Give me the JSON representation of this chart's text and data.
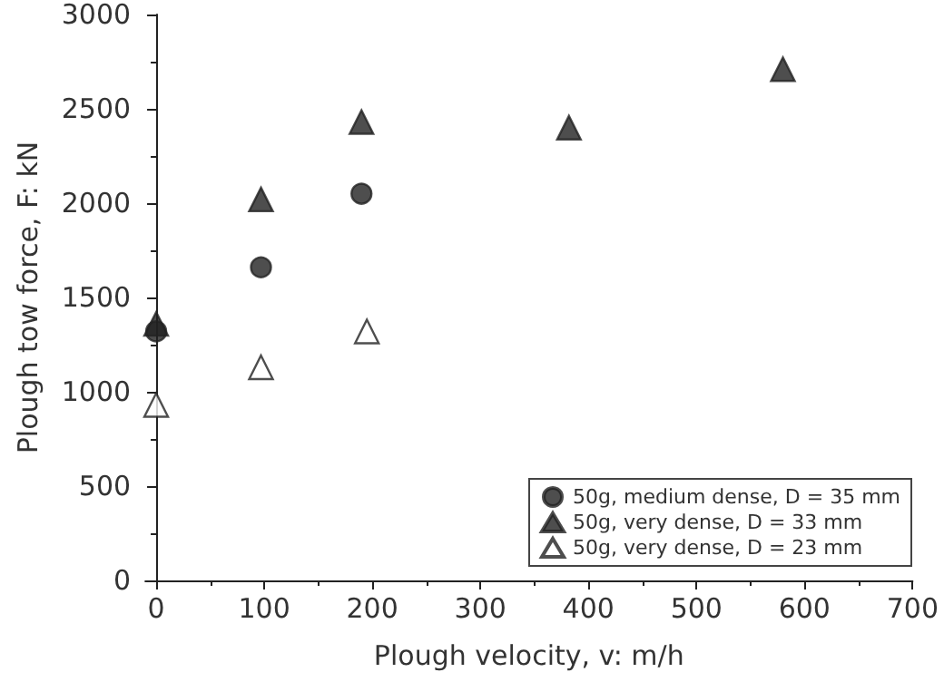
{
  "chart_data": {
    "type": "scatter",
    "xlabel": "Plough velocity, v: m/h",
    "ylabel": "Plough tow force, F: kN",
    "series": [
      {
        "name": "50g, medium dense, D = 35 mm",
        "color": "#222222",
        "marker": "circle",
        "x": [
          0,
          97,
          190
        ],
        "values": [
          1320,
          1660,
          2050
        ]
      },
      {
        "name": "50g, very dense, D = 33 mm",
        "color": "#222222",
        "marker": "triangle",
        "x": [
          0,
          97,
          190,
          382,
          580
        ],
        "values": [
          1360,
          2020,
          2430,
          2400,
          2710
        ]
      },
      {
        "name": "50g, very dense, D = 23 mm",
        "color": "#ffffff",
        "marker": "triangle",
        "x": [
          0,
          97,
          195
        ],
        "values": [
          930,
          1130,
          1320
        ]
      }
    ],
    "xlim": [
      -10,
      700
    ],
    "xticks": [
      0,
      100,
      200,
      300,
      400,
      500,
      600,
      700
    ],
    "ylim": [
      0,
      3000
    ],
    "yticks": [
      0,
      500,
      1000,
      1500,
      2000,
      2500,
      3000
    ],
    "grid": false,
    "legend": "bottom right"
  }
}
